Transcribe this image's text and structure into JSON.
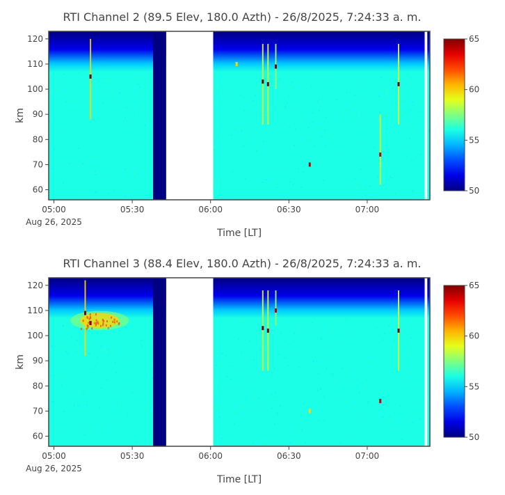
{
  "chart_data": [
    {
      "type": "heatmap",
      "title": "RTI  Channel 2 (89.5 Elev,  180.0 Azth) - 26/8/2025, 7:24:33 a. m.",
      "xlabel": "Time [LT]",
      "ylabel": "km",
      "x_ticks": [
        "05:00",
        "05:30",
        "06:00",
        "06:30",
        "07:00"
      ],
      "x_date_label": "Aug 26, 2025",
      "xlim": [
        "04:58",
        "07:24"
      ],
      "y_ticks": [
        60,
        70,
        80,
        90,
        100,
        110,
        120
      ],
      "ylim": [
        56,
        123
      ],
      "colorbar": {
        "min": 50,
        "max": 65,
        "ticks": [
          50,
          55,
          60,
          65
        ],
        "colorscale": "jet"
      },
      "background_level": 56,
      "top_layer": {
        "from_km": 107,
        "to_km": 123,
        "level_at_top": 50
      },
      "no_data_intervals": [
        [
          "05:38",
          "05:43",
          "low"
        ],
        [
          "05:43",
          "06:01",
          "gap"
        ],
        [
          "07:22",
          "07:23",
          "gap"
        ]
      ],
      "vertical_streaks": [
        {
          "time": "05:14",
          "from_km": 88,
          "to_km": 120,
          "level": 60
        },
        {
          "time": "06:20",
          "from_km": 86,
          "to_km": 118,
          "level": 59
        },
        {
          "time": "06:22",
          "from_km": 86,
          "to_km": 118,
          "level": 59
        },
        {
          "time": "06:25",
          "from_km": 100,
          "to_km": 118,
          "level": 58
        },
        {
          "time": "07:05",
          "from_km": 62,
          "to_km": 90,
          "level": 59
        },
        {
          "time": "07:12",
          "from_km": 86,
          "to_km": 118,
          "level": 59
        }
      ],
      "echoes": [
        {
          "time": "05:14",
          "km": 105,
          "level": 65
        },
        {
          "time": "06:10",
          "km": 110,
          "level": 60
        },
        {
          "time": "06:20",
          "km": 103,
          "level": 65
        },
        {
          "time": "06:22",
          "km": 102,
          "level": 65
        },
        {
          "time": "06:25",
          "km": 109,
          "level": 65
        },
        {
          "time": "06:38",
          "km": 70,
          "level": 64
        },
        {
          "time": "07:05",
          "km": 74,
          "level": 64
        },
        {
          "time": "07:12",
          "km": 102,
          "level": 65
        }
      ],
      "enhanced_layer": null
    },
    {
      "type": "heatmap",
      "title": "RTI  Channel 3 (88.4 Elev,  180.0 Azth) - 26/8/2025, 7:24:33 a. m.",
      "xlabel": "Time [LT]",
      "ylabel": "km",
      "x_ticks": [
        "05:00",
        "05:30",
        "06:00",
        "06:30",
        "07:00"
      ],
      "x_date_label": "Aug 26, 2025",
      "xlim": [
        "04:58",
        "07:24"
      ],
      "y_ticks": [
        60,
        70,
        80,
        90,
        100,
        110,
        120
      ],
      "ylim": [
        56,
        123
      ],
      "colorbar": {
        "min": 50,
        "max": 65,
        "ticks": [
          50,
          55,
          60,
          65
        ],
        "colorscale": "jet"
      },
      "background_level": 56,
      "top_layer": {
        "from_km": 107,
        "to_km": 123,
        "level_at_top": 50
      },
      "no_data_intervals": [
        [
          "05:38",
          "05:43",
          "low"
        ],
        [
          "05:43",
          "06:01",
          "gap"
        ],
        [
          "07:22",
          "07:23",
          "gap"
        ]
      ],
      "vertical_streaks": [
        {
          "time": "05:12",
          "from_km": 92,
          "to_km": 122,
          "level": 60
        },
        {
          "time": "06:20",
          "from_km": 86,
          "to_km": 118,
          "level": 59
        },
        {
          "time": "06:22",
          "from_km": 86,
          "to_km": 118,
          "level": 59
        },
        {
          "time": "06:25",
          "from_km": 104,
          "to_km": 118,
          "level": 58
        },
        {
          "time": "07:12",
          "from_km": 86,
          "to_km": 118,
          "level": 59
        }
      ],
      "echoes": [
        {
          "time": "05:12",
          "km": 109,
          "level": 65
        },
        {
          "time": "05:14",
          "km": 105,
          "level": 65
        },
        {
          "time": "06:20",
          "km": 103,
          "level": 65
        },
        {
          "time": "06:22",
          "km": 102,
          "level": 65
        },
        {
          "time": "06:25",
          "km": 110,
          "level": 64
        },
        {
          "time": "06:38",
          "km": 70,
          "level": 60
        },
        {
          "time": "07:05",
          "km": 74,
          "level": 64
        },
        {
          "time": "07:12",
          "km": 102,
          "level": 65
        }
      ],
      "enhanced_layer": {
        "from_time": "05:10",
        "to_time": "05:25",
        "from_km": 103,
        "to_km": 109,
        "level": 60
      }
    }
  ]
}
